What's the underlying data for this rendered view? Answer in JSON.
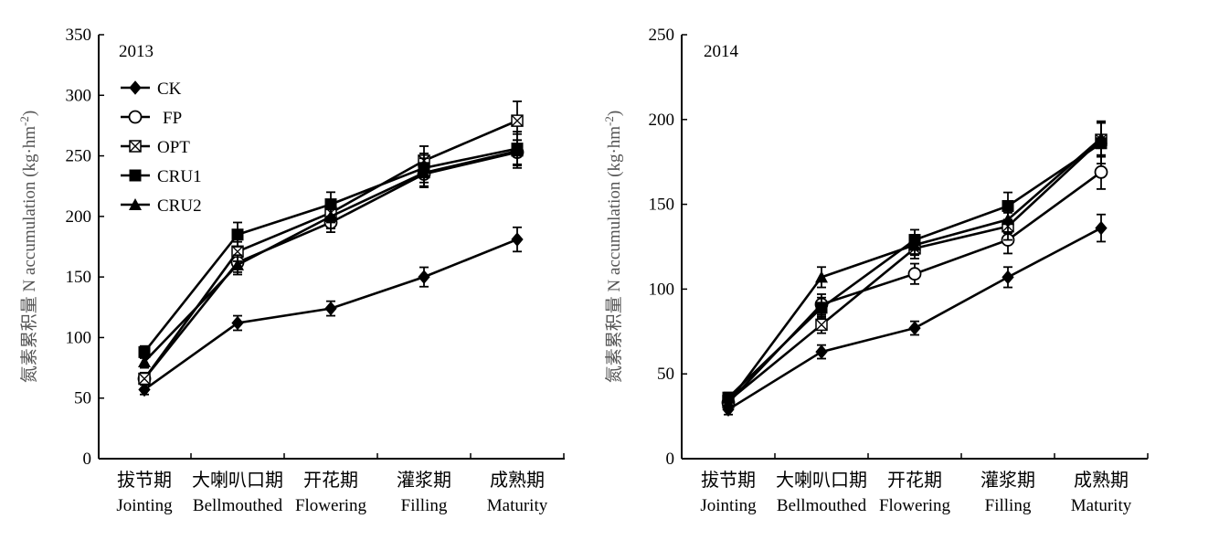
{
  "chart_data": [
    {
      "type": "line",
      "title": "2013",
      "ylabel_zh": "氮素累积量",
      "ylabel_en": "N accumulation (kg·hm",
      "ylabel_exp": "-2",
      "ylabel_close": ")",
      "ylim": [
        0,
        350
      ],
      "yticks": [
        0,
        50,
        100,
        150,
        200,
        250,
        300,
        350
      ],
      "categories_zh": [
        "拔节期",
        "大喇叭口期",
        "开花期",
        "灌浆期",
        "成熟期"
      ],
      "categories_en": [
        "Jointing",
        "Bellmouthed",
        "Flowering",
        "Filling",
        "Maturity"
      ],
      "legend_position": "top-left",
      "series": [
        {
          "name": "CK",
          "marker": "diamond",
          "values": [
            57,
            112,
            124,
            150,
            181
          ],
          "errors": [
            4,
            6,
            6,
            8,
            10
          ]
        },
        {
          "name": "FP",
          "marker": "circle-open",
          "values": [
            66,
            162,
            195,
            235,
            253
          ],
          "errors": [
            5,
            8,
            8,
            10,
            10
          ]
        },
        {
          "name": "OPT",
          "marker": "square-x",
          "values": [
            66,
            171,
            203,
            246,
            279
          ],
          "errors": [
            5,
            8,
            8,
            12,
            16
          ]
        },
        {
          "name": "CRU1",
          "marker": "square",
          "values": [
            88,
            185,
            210,
            240,
            256
          ],
          "errors": [
            5,
            10,
            10,
            12,
            14
          ]
        },
        {
          "name": "CRU2",
          "marker": "triangle",
          "values": [
            80,
            160,
            200,
            236,
            254
          ],
          "errors": [
            5,
            8,
            10,
            12,
            14
          ]
        }
      ]
    },
    {
      "type": "line",
      "title": "2014",
      "ylabel_zh": "氮素累积量",
      "ylabel_en": "N accumulation (kg·hm",
      "ylabel_exp": "-2",
      "ylabel_close": ")",
      "ylim": [
        0,
        250
      ],
      "yticks": [
        0,
        50,
        100,
        150,
        200,
        250
      ],
      "categories_zh": [
        "拔节期",
        "大喇叭口期",
        "开花期",
        "灌浆期",
        "成熟期"
      ],
      "categories_en": [
        "Jointing",
        "Bellmouthed",
        "Flowering",
        "Filling",
        "Maturity"
      ],
      "series": [
        {
          "name": "CK",
          "marker": "diamond",
          "values": [
            29,
            63,
            77,
            107,
            136
          ],
          "errors": [
            3,
            4,
            4,
            6,
            8
          ]
        },
        {
          "name": "FP",
          "marker": "circle-open",
          "values": [
            33,
            91,
            109,
            129,
            169
          ],
          "errors": [
            3,
            6,
            6,
            8,
            10
          ]
        },
        {
          "name": "OPT",
          "marker": "square-x",
          "values": [
            34,
            79,
            124,
            137,
            188
          ],
          "errors": [
            3,
            5,
            6,
            8,
            10
          ]
        },
        {
          "name": "CRU1",
          "marker": "square",
          "values": [
            36,
            89,
            129,
            149,
            186
          ],
          "errors": [
            3,
            6,
            6,
            8,
            12
          ]
        },
        {
          "name": "CRU2",
          "marker": "triangle",
          "values": [
            33,
            107,
            126,
            141,
            189
          ],
          "errors": [
            3,
            6,
            6,
            8,
            10
          ]
        }
      ]
    }
  ]
}
